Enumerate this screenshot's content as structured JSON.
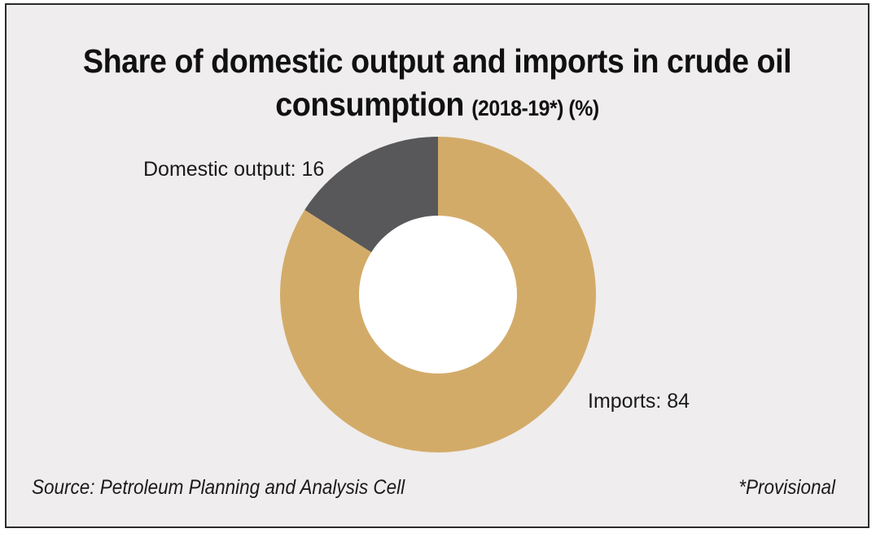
{
  "chart_data": {
    "type": "pie",
    "variant": "donut",
    "title": "Share of domestic output and imports in crude oil consumption",
    "title_line1": "Share of domestic output and imports in crude oil",
    "title_line2": "consumption",
    "subtitle": "(2018-19*) (%)",
    "categories": [
      "Domestic output",
      "Imports"
    ],
    "values": [
      16,
      84
    ],
    "labels": [
      "Domestic output: 16",
      "Imports: 84"
    ],
    "colors": [
      "#58585a",
      "#d3ab69"
    ],
    "legend": "none"
  },
  "colors": {
    "background": "#efeded",
    "border": "#2b2b2b",
    "hole": "#ffffff"
  },
  "footer": {
    "source": "Source: Petroleum Planning and Analysis Cell",
    "note": "*Provisional"
  }
}
